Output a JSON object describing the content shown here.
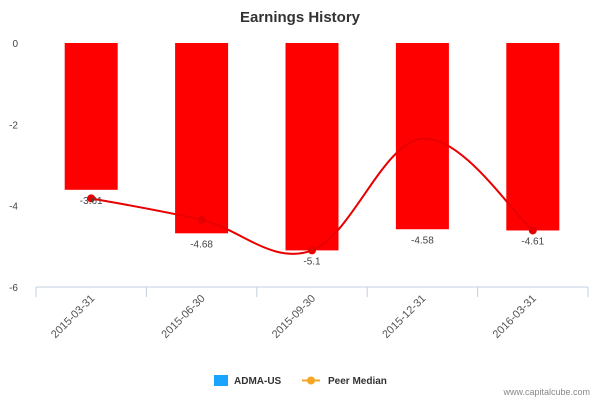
{
  "chart_data": {
    "type": "bar",
    "title": "Earnings History",
    "categories": [
      "2015-03-31",
      "2015-06-30",
      "2015-09-30",
      "2015-12-31",
      "2016-03-31"
    ],
    "series": [
      {
        "name": "ADMA-US",
        "kind": "bar",
        "values": [
          -3.61,
          -4.68,
          -5.1,
          -4.58,
          -4.61
        ],
        "data_labels": [
          "-3.61",
          "-4.68",
          "-5.1",
          "-4.58",
          "-4.61"
        ]
      },
      {
        "name": "Peer Median",
        "kind": "line",
        "values": [
          -3.82,
          -4.35,
          -5.1,
          -2.35,
          -4.61
        ]
      }
    ],
    "ylim": [
      -6,
      0
    ],
    "yticks": [
      "0",
      "-2",
      "-4",
      "-6"
    ],
    "grid": false,
    "legend_position": "bottom-center"
  },
  "colors": {
    "bar_fill": "#ff0000",
    "line": "#e80000",
    "legend_admasus": "#1aa3ff",
    "legend_peer": "#f5a623"
  },
  "credit": "www.capitalcube.com"
}
